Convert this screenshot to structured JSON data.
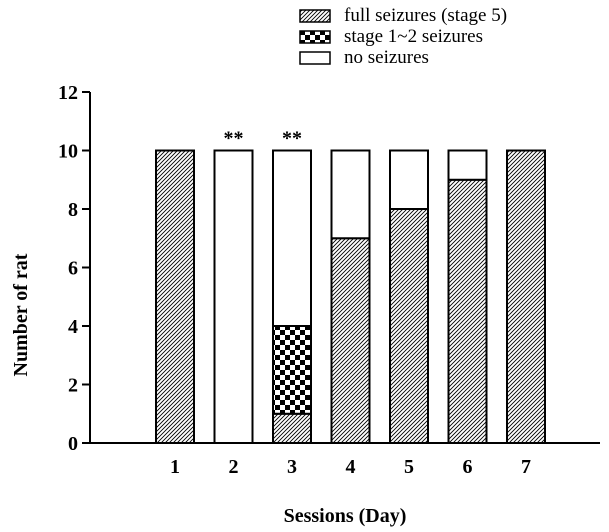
{
  "chart_data": {
    "type": "bar",
    "stacked": true,
    "xlabel": "Sessions (Day)",
    "ylabel": "Number of rat",
    "ylim": [
      0,
      12
    ],
    "yticks": [
      0,
      2,
      4,
      6,
      8,
      10,
      12
    ],
    "categories": [
      "1",
      "2",
      "3",
      "4",
      "5",
      "6",
      "7"
    ],
    "series": [
      {
        "name": "full seizures (stage 5)",
        "values": [
          10,
          0,
          1,
          7,
          8,
          9,
          10
        ],
        "pattern": "diagonal-hatch"
      },
      {
        "name": "stage 1~2 seizures",
        "values": [
          0,
          0,
          3,
          0,
          0,
          0,
          0
        ],
        "pattern": "checker"
      },
      {
        "name": "no seizures",
        "values": [
          0,
          10,
          6,
          3,
          2,
          1,
          0
        ],
        "pattern": "none"
      }
    ],
    "annotations": [
      {
        "category": "2",
        "text": "**"
      },
      {
        "category": "3",
        "text": "**"
      }
    ],
    "legend_position": "top-right",
    "grid": false
  },
  "colors": {
    "stroke": "#000000",
    "fill_plain": "#ffffff",
    "hatch_line": "#000000"
  }
}
